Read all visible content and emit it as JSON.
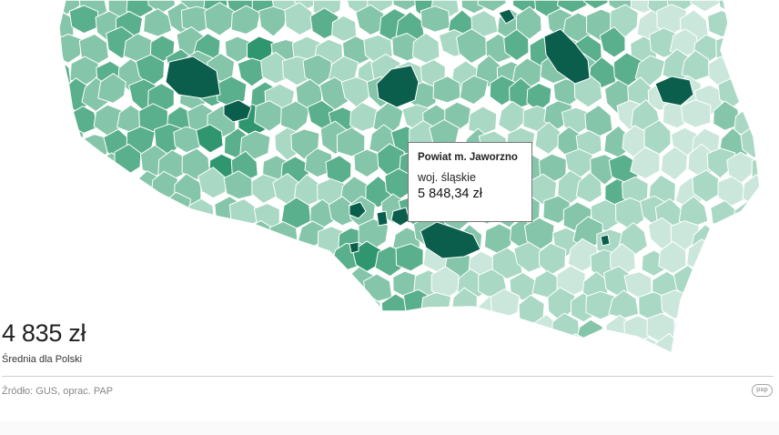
{
  "tooltip": {
    "name": "Powiat m. Jaworzno",
    "region": "woj. śląskie",
    "value": "5 848,34 zł"
  },
  "summary": {
    "value": "4 835 zł",
    "label": "Średnia dla Polski"
  },
  "source": "Źródło: GUS, oprac. PAP",
  "logo_text": "pap",
  "colors": {
    "level_1": "#cbe7dc",
    "level_2": "#a9d8c4",
    "level_3": "#85c5aa",
    "level_4": "#5aaf8c",
    "level_5": "#2f9670",
    "level_6": "#0c5e4c",
    "border": "#ffffff"
  }
}
